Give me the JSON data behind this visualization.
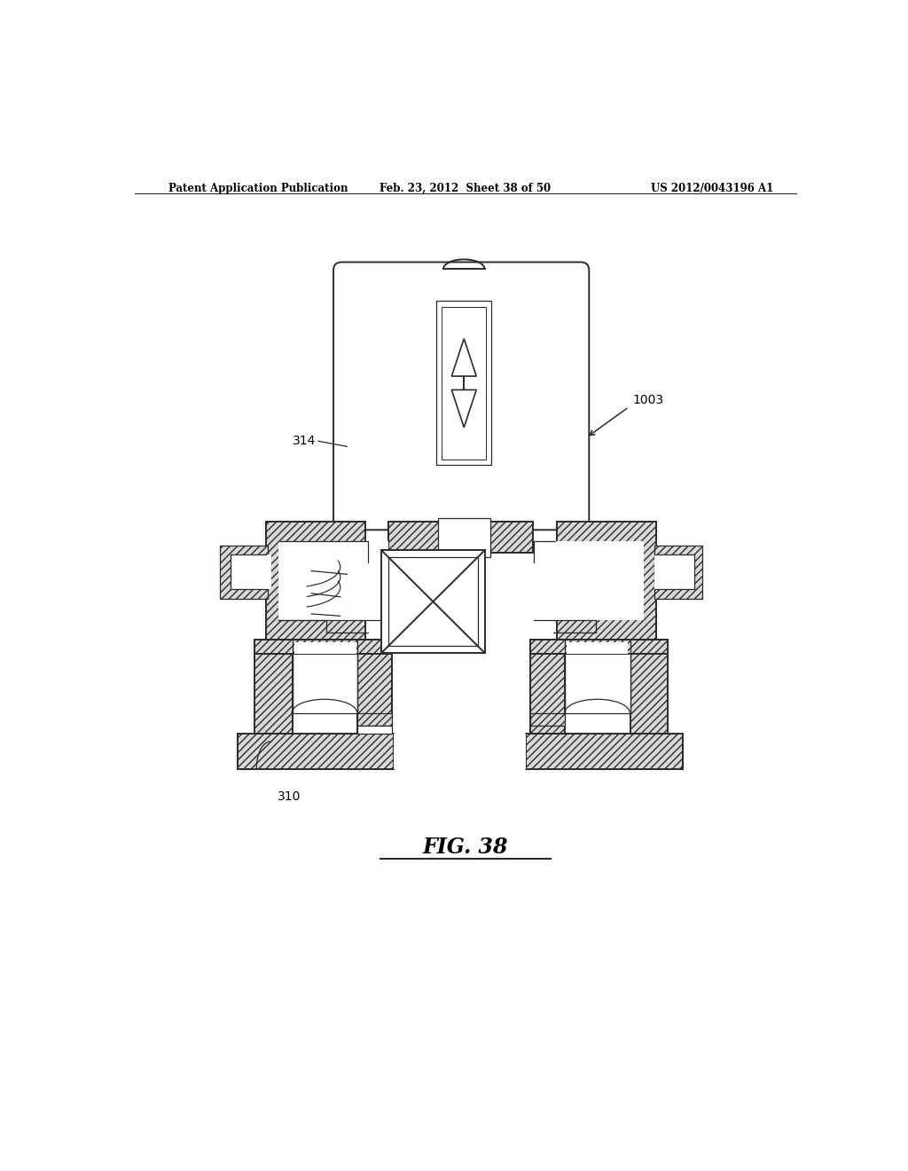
{
  "bg_color": "#ffffff",
  "line_color": "#2a2a2a",
  "header_left": "Patent Application Publication",
  "header_mid": "Feb. 23, 2012  Sheet 38 of 50",
  "header_right": "US 2012/0043196 A1",
  "fig_label": "FIG. 38",
  "hatch_fc": "#d8d8d8",
  "hatch_pattern": "////",
  "lw_main": 1.4,
  "lw_thin": 0.9,
  "lw_label": 0.8
}
